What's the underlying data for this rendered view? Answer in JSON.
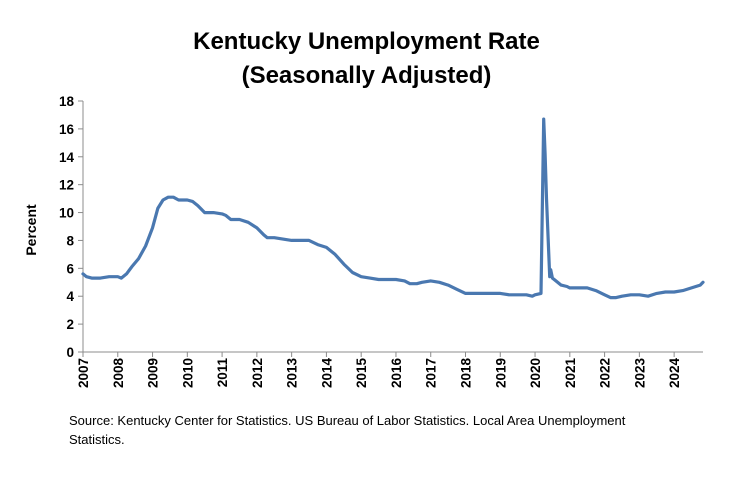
{
  "chart_data": {
    "type": "line",
    "title_line_1": "Kentucky Unemployment Rate",
    "title_line_2": "(Seasonally Adjusted)",
    "xlabel": "",
    "ylabel": "Percent",
    "ylim": [
      0,
      18
    ],
    "yticks": [
      0,
      2,
      4,
      6,
      8,
      10,
      12,
      14,
      16,
      18
    ],
    "xlim": [
      2007,
      2024.83
    ],
    "xticks": [
      "2007",
      "2008",
      "2009",
      "2010",
      "2011",
      "2012",
      "2013",
      "2014",
      "2015",
      "2016",
      "2017",
      "2018",
      "2019",
      "2020",
      "2021",
      "2022",
      "2023",
      "2024"
    ],
    "grid": false,
    "legend": false,
    "line_color": "#4a78b0",
    "series": [
      {
        "name": "Kentucky Unemployment Rate",
        "x": [
          2007.0,
          2007.1,
          2007.25,
          2007.5,
          2007.75,
          2008.0,
          2008.1,
          2008.25,
          2008.4,
          2008.6,
          2008.8,
          2009.0,
          2009.15,
          2009.3,
          2009.45,
          2009.6,
          2009.75,
          2009.9,
          2010.0,
          2010.15,
          2010.3,
          2010.5,
          2010.75,
          2011.0,
          2011.1,
          2011.25,
          2011.5,
          2011.75,
          2012.0,
          2012.2,
          2012.3,
          2012.5,
          2012.75,
          2013.0,
          2013.25,
          2013.5,
          2013.75,
          2014.0,
          2014.25,
          2014.5,
          2014.75,
          2015.0,
          2015.25,
          2015.5,
          2015.75,
          2016.0,
          2016.25,
          2016.4,
          2016.6,
          2016.75,
          2017.0,
          2017.25,
          2017.5,
          2017.75,
          2018.0,
          2018.25,
          2018.5,
          2018.75,
          2019.0,
          2019.25,
          2019.5,
          2019.75,
          2019.92,
          2020.0,
          2020.17,
          2020.25,
          2020.29,
          2020.33,
          2020.42,
          2020.45,
          2020.5,
          2020.55,
          2020.6,
          2020.75,
          2020.92,
          2021.0,
          2021.25,
          2021.5,
          2021.75,
          2022.0,
          2022.17,
          2022.33,
          2022.5,
          2022.75,
          2023.0,
          2023.25,
          2023.5,
          2023.75,
          2024.0,
          2024.25,
          2024.5,
          2024.75,
          2024.83
        ],
        "values": [
          5.6,
          5.4,
          5.3,
          5.3,
          5.4,
          5.4,
          5.3,
          5.6,
          6.1,
          6.7,
          7.6,
          8.9,
          10.3,
          10.9,
          11.1,
          11.1,
          10.9,
          10.9,
          10.9,
          10.8,
          10.5,
          10.0,
          10.0,
          9.9,
          9.8,
          9.5,
          9.5,
          9.3,
          8.9,
          8.4,
          8.2,
          8.2,
          8.1,
          8.0,
          8.0,
          8.0,
          7.7,
          7.5,
          7.0,
          6.3,
          5.7,
          5.4,
          5.3,
          5.2,
          5.2,
          5.2,
          5.1,
          4.9,
          4.9,
          5.0,
          5.1,
          5.0,
          4.8,
          4.5,
          4.2,
          4.2,
          4.2,
          4.2,
          4.2,
          4.1,
          4.1,
          4.1,
          4.0,
          4.1,
          4.2,
          16.7,
          14.2,
          11.0,
          5.4,
          5.9,
          5.3,
          5.2,
          5.1,
          4.8,
          4.7,
          4.6,
          4.6,
          4.6,
          4.4,
          4.1,
          3.9,
          3.9,
          4.0,
          4.1,
          4.1,
          4.0,
          4.2,
          4.3,
          4.3,
          4.4,
          4.6,
          4.8,
          5.0
        ]
      }
    ]
  },
  "source_text": "Source: Kentucky Center for Statistics. US Bureau of Labor Statistics. Local Area Unemployment Statistics."
}
